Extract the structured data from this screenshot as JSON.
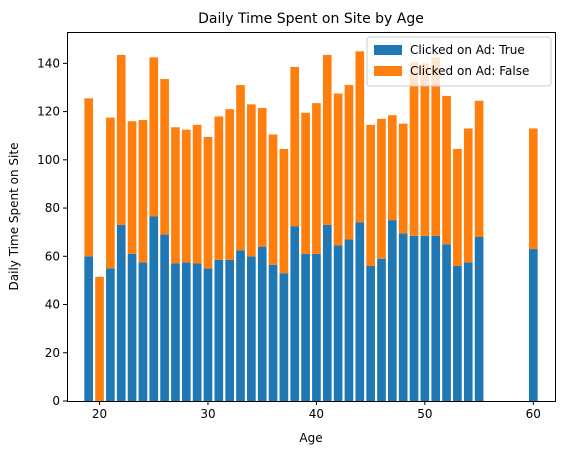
{
  "chart_data": {
    "type": "bar",
    "stacked": true,
    "title": "Daily Time Spent on Site by Age",
    "xlabel": "Age",
    "ylabel": "Daily Time Spent on Site",
    "xlim": [
      17,
      62
    ],
    "ylim": [
      0,
      153
    ],
    "xticks": [
      20,
      30,
      40,
      50,
      60
    ],
    "yticks": [
      0,
      20,
      40,
      60,
      80,
      100,
      120,
      140
    ],
    "grid": false,
    "legend_position": "top-right",
    "x": [
      19,
      20,
      21,
      22,
      23,
      24,
      25,
      26,
      27,
      28,
      29,
      30,
      31,
      32,
      33,
      34,
      35,
      36,
      37,
      38,
      39,
      40,
      41,
      42,
      43,
      44,
      45,
      46,
      47,
      48,
      49,
      50,
      51,
      52,
      53,
      54,
      55,
      60
    ],
    "series": [
      {
        "name": "Clicked on Ad: True",
        "color": "#1f77b4",
        "values": [
          60,
          0,
          55,
          73,
          61,
          57.5,
          76.5,
          69,
          57,
          57.5,
          57,
          55,
          58.5,
          58.5,
          62.5,
          60,
          64,
          56.5,
          53,
          72.5,
          61,
          61,
          73,
          64.5,
          67,
          74,
          56,
          59,
          75,
          69.5,
          68.5,
          68.5,
          68.5,
          65,
          56,
          57.5,
          68,
          63
        ]
      },
      {
        "name": "Clicked on Ad: False",
        "color": "#ff7f0e",
        "values": [
          65.5,
          51.5,
          62.5,
          70.5,
          55,
          59,
          66,
          64.5,
          56.5,
          55,
          57.5,
          54.5,
          59.5,
          62.5,
          68.5,
          63,
          57.5,
          54,
          51.5,
          66,
          58.5,
          62.5,
          70.5,
          63,
          64,
          71,
          58.5,
          58,
          43.5,
          45.5,
          72,
          71.5,
          74,
          61.5,
          48.5,
          55.5,
          56.5,
          50
        ]
      }
    ]
  }
}
